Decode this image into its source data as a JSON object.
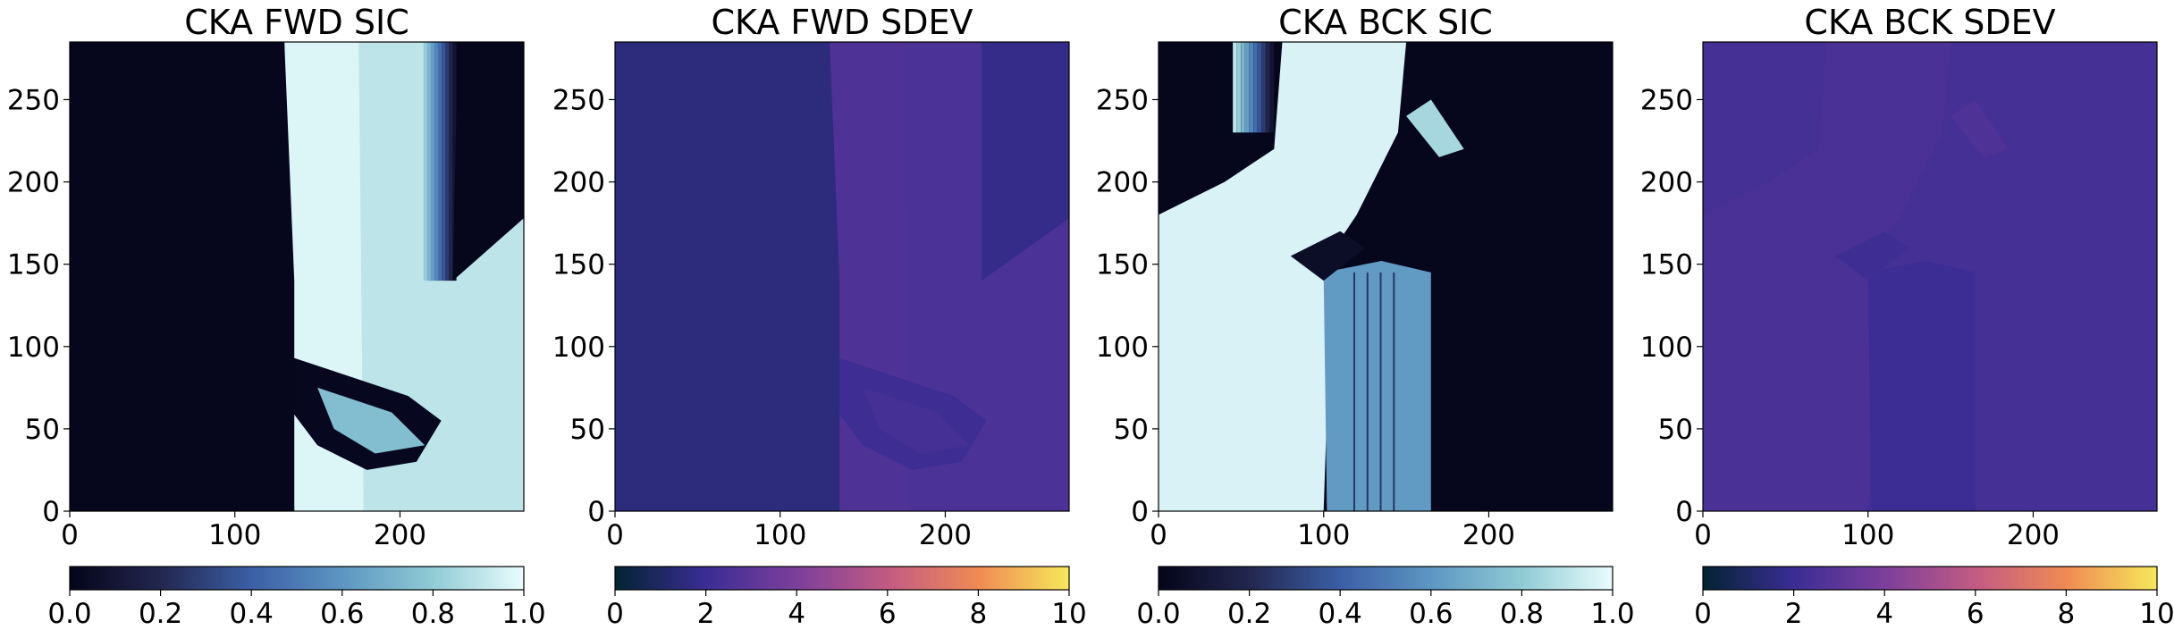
{
  "panels": [
    {
      "title": "CKA FWD SIC",
      "cmap": "ice",
      "colorbar": {
        "min": 0.0,
        "max": 1.0,
        "ticks": [
          "0.0",
          "0.2",
          "0.4",
          "0.6",
          "0.8",
          "1.0"
        ],
        "stops": [
          "#04051a",
          "#23274f",
          "#3b5fa6",
          "#5c96c2",
          "#8fcbd5",
          "#eafcfd"
        ]
      },
      "pattern": "fwd_sic"
    },
    {
      "title": "CKA FWD SDEV",
      "cmap": "thermal",
      "colorbar": {
        "min": 0,
        "max": 10,
        "ticks": [
          "0",
          "2",
          "4",
          "6",
          "8",
          "10"
        ],
        "stops": [
          "#032333",
          "#3b2d94",
          "#7c3f9b",
          "#c25b83",
          "#ef8a54",
          "#f6e85a"
        ]
      },
      "pattern": "fwd_sdev"
    },
    {
      "title": "CKA BCK SIC",
      "cmap": "ice",
      "colorbar": {
        "min": 0.0,
        "max": 1.0,
        "ticks": [
          "0.0",
          "0.2",
          "0.4",
          "0.6",
          "0.8",
          "1.0"
        ],
        "stops": [
          "#04051a",
          "#23274f",
          "#3b5fa6",
          "#5c96c2",
          "#8fcbd5",
          "#eafcfd"
        ]
      },
      "pattern": "bck_sic"
    },
    {
      "title": "CKA BCK SDEV",
      "cmap": "thermal",
      "colorbar": {
        "min": 0,
        "max": 10,
        "ticks": [
          "0",
          "2",
          "4",
          "6",
          "8",
          "10"
        ],
        "stops": [
          "#032333",
          "#3b2d94",
          "#7c3f9b",
          "#c25b83",
          "#ef8a54",
          "#f6e85a"
        ]
      },
      "pattern": "bck_sdev"
    }
  ],
  "chart_data": {
    "type": "heatmap",
    "x_ticks": [
      "0",
      "100",
      "200"
    ],
    "y_ticks": [
      "0",
      "50",
      "100",
      "150",
      "200",
      "250"
    ],
    "xlim": [
      0,
      275
    ],
    "ylim": [
      0,
      285
    ]
  }
}
